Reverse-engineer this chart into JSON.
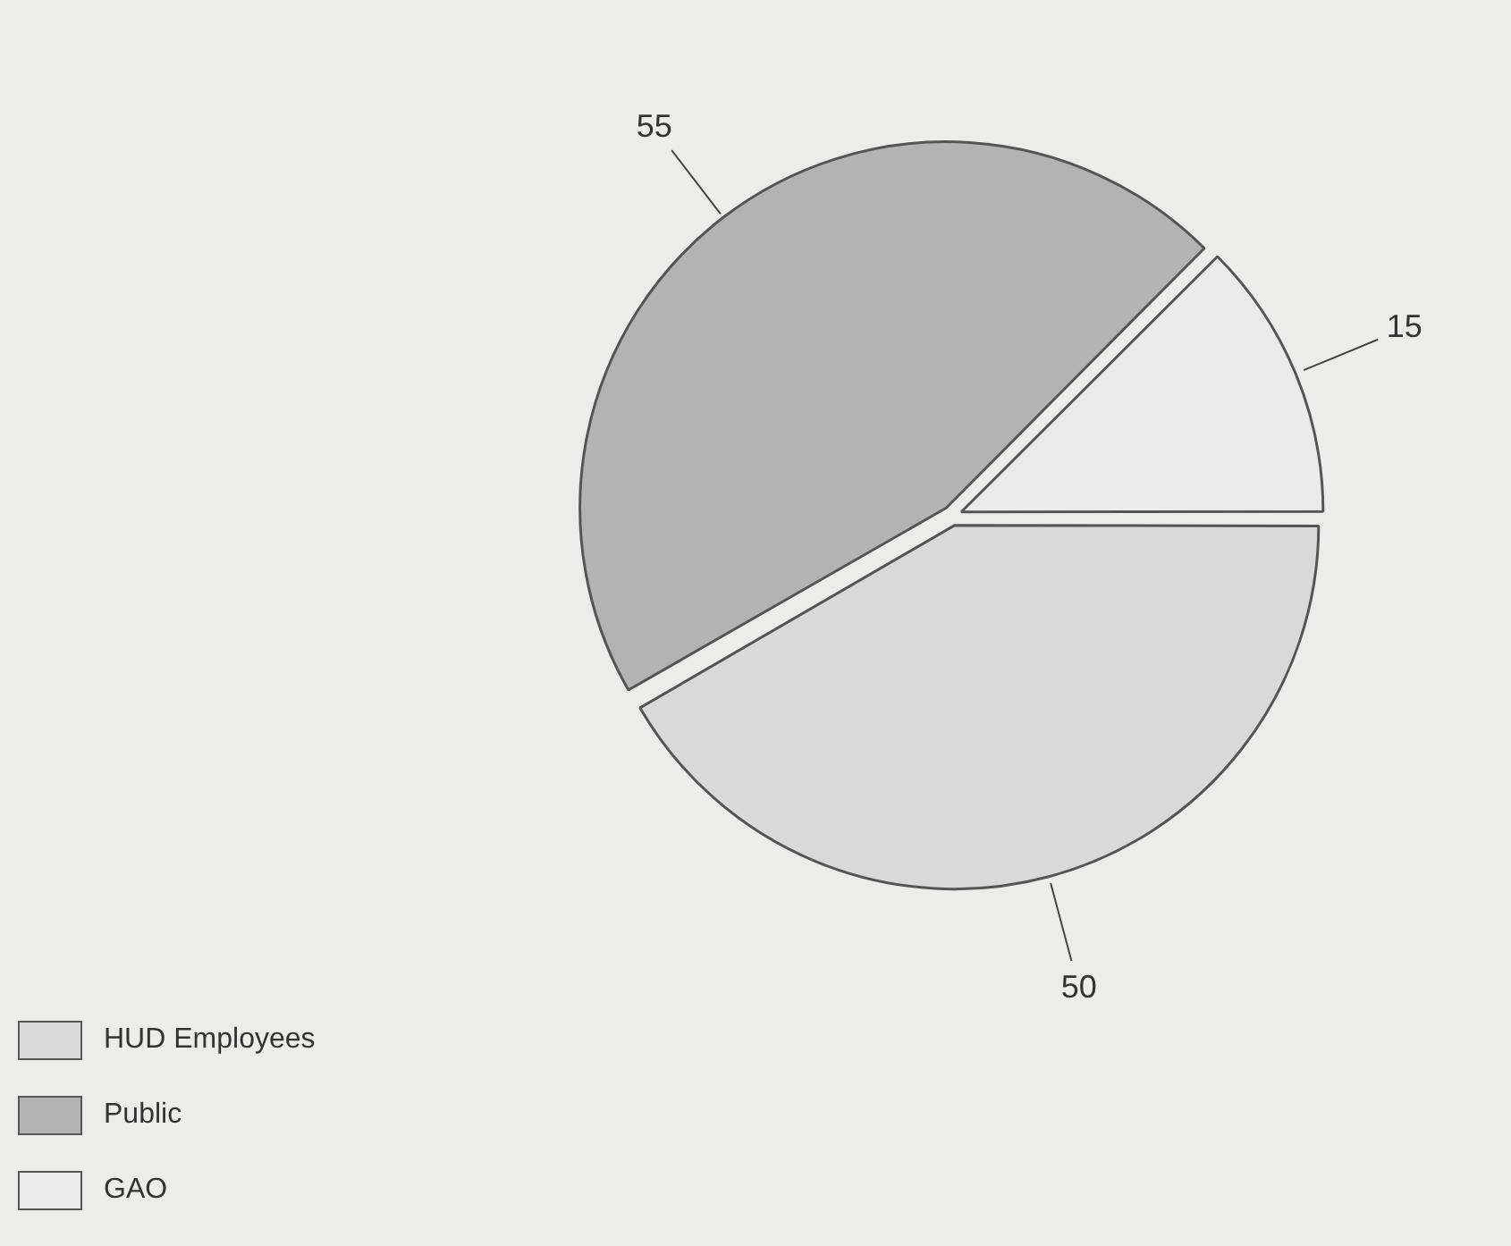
{
  "chart_data": {
    "type": "pie",
    "categories": [
      "HUD Employees",
      "Public",
      "GAO"
    ],
    "values": [
      50,
      55,
      15
    ],
    "colors": [
      "#d9d9d9",
      "#b3b3b3",
      "#eaeaea"
    ],
    "data_labels": true,
    "legend": "bottom left"
  }
}
